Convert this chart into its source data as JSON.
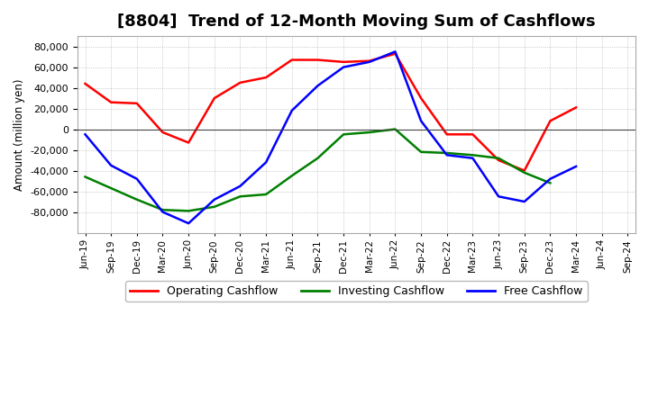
{
  "title": "[8804]  Trend of 12-Month Moving Sum of Cashflows",
  "ylabel": "Amount (million yen)",
  "background_color": "#ffffff",
  "plot_background": "#ffffff",
  "x_labels": [
    "Jun-19",
    "Sep-19",
    "Dec-19",
    "Mar-20",
    "Jun-20",
    "Sep-20",
    "Dec-20",
    "Mar-21",
    "Jun-21",
    "Sep-21",
    "Dec-21",
    "Mar-22",
    "Jun-22",
    "Sep-22",
    "Dec-22",
    "Mar-23",
    "Jun-23",
    "Sep-23",
    "Dec-23",
    "Mar-24",
    "Jun-24",
    "Sep-24"
  ],
  "operating": [
    44000,
    26000,
    25000,
    -3000,
    -13000,
    30000,
    45000,
    50000,
    67000,
    67000,
    65000,
    66000,
    73000,
    30000,
    -5000,
    -5000,
    -30000,
    -40000,
    8000,
    21000,
    null,
    null
  ],
  "investing": [
    -46000,
    -57000,
    -68000,
    -78000,
    -79000,
    -75000,
    -65000,
    -63000,
    -45000,
    -28000,
    -5000,
    -3000,
    0,
    -22000,
    -23000,
    -25000,
    -28000,
    -42000,
    -52000,
    null,
    null,
    null
  ],
  "free": [
    -5000,
    -35000,
    -48000,
    -80000,
    -91000,
    -68000,
    -55000,
    -32000,
    18000,
    42000,
    60000,
    65000,
    75000,
    8000,
    -25000,
    -28000,
    -65000,
    -70000,
    -48000,
    -36000,
    null,
    null
  ],
  "ylim": [
    -100000,
    90000
  ],
  "yticks": [
    -80000,
    -60000,
    -40000,
    -20000,
    0,
    20000,
    40000,
    60000,
    80000
  ],
  "operating_color": "#ff0000",
  "investing_color": "#008000",
  "free_color": "#0000ff",
  "line_width": 1.8,
  "title_fontsize": 13,
  "legend_labels": [
    "Operating Cashflow",
    "Investing Cashflow",
    "Free Cashflow"
  ]
}
